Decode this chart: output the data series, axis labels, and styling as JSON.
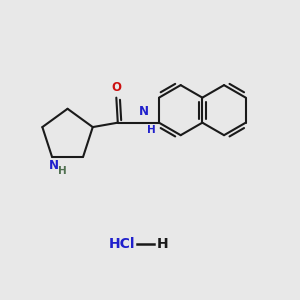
{
  "background_color": "#e8e8e8",
  "bond_color": "#1a1a1a",
  "N_color": "#2020cc",
  "O_color": "#cc1010",
  "NH_H_color": "#507050",
  "line_width": 1.5,
  "figsize": [
    3.0,
    3.0
  ],
  "dpi": 100,
  "xlim": [
    0,
    10
  ],
  "ylim": [
    0,
    10
  ]
}
